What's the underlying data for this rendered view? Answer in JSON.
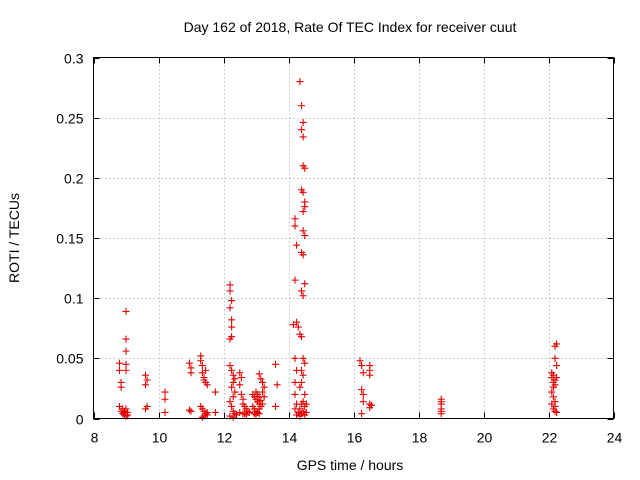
{
  "chart_data": {
    "type": "scatter",
    "title": "Day 162 of 2018, Rate Of TEC Index for receiver cuut",
    "xlabel": "GPS time / hours",
    "ylabel": "ROTI / TECUs",
    "xlim": [
      8,
      24
    ],
    "ylim": [
      0,
      0.3
    ],
    "x_ticks": [
      8,
      10,
      12,
      14,
      16,
      18,
      20,
      22,
      24
    ],
    "x_tick_labels": [
      "8",
      "10",
      "12",
      "14",
      "16",
      "18",
      "20",
      "22",
      "24"
    ],
    "y_ticks": [
      0,
      0.05,
      0.1,
      0.15,
      0.2,
      0.25,
      0.3
    ],
    "y_tick_labels": [
      "0",
      "0.05",
      "0.1",
      "0.15",
      "0.2",
      "0.25",
      "0.3"
    ],
    "grid": true,
    "marker": "plus",
    "color": "#e00000",
    "series": [
      {
        "name": "ROTI",
        "points": [
          [
            8.8,
            0.046
          ],
          [
            8.8,
            0.04
          ],
          [
            8.85,
            0.03
          ],
          [
            8.85,
            0.026
          ],
          [
            8.8,
            0.01
          ],
          [
            8.85,
            0.006
          ],
          [
            8.9,
            0.004
          ],
          [
            8.95,
            0.003
          ],
          [
            8.9,
            0.008
          ],
          [
            8.95,
            0.005
          ],
          [
            9.0,
            0.089
          ],
          [
            9.0,
            0.066
          ],
          [
            9.0,
            0.056
          ],
          [
            9.0,
            0.045
          ],
          [
            9.0,
            0.04
          ],
          [
            9.0,
            0.008
          ],
          [
            9.05,
            0.005
          ],
          [
            9.05,
            0.003
          ],
          [
            9.0,
            0.002
          ],
          [
            8.95,
            0.006
          ],
          [
            9.6,
            0.036
          ],
          [
            9.65,
            0.032
          ],
          [
            9.6,
            0.028
          ],
          [
            9.65,
            0.01
          ],
          [
            9.6,
            0.008
          ],
          [
            10.2,
            0.022
          ],
          [
            10.2,
            0.016
          ],
          [
            10.2,
            0.005
          ],
          [
            10.95,
            0.046
          ],
          [
            11.0,
            0.042
          ],
          [
            11.0,
            0.038
          ],
          [
            10.95,
            0.007
          ],
          [
            11.0,
            0.006
          ],
          [
            11.3,
            0.052
          ],
          [
            11.3,
            0.048
          ],
          [
            11.35,
            0.044
          ],
          [
            11.35,
            0.038
          ],
          [
            11.4,
            0.034
          ],
          [
            11.4,
            0.032
          ],
          [
            11.45,
            0.04
          ],
          [
            11.45,
            0.03
          ],
          [
            11.5,
            0.028
          ],
          [
            11.3,
            0.01
          ],
          [
            11.35,
            0.008
          ],
          [
            11.4,
            0.006
          ],
          [
            11.45,
            0.004
          ],
          [
            11.5,
            0.003
          ],
          [
            11.4,
            0.002
          ],
          [
            11.5,
            0.005
          ],
          [
            11.35,
            0.001
          ],
          [
            11.75,
            0.022
          ],
          [
            11.75,
            0.005
          ],
          [
            12.2,
            0.111
          ],
          [
            12.2,
            0.106
          ],
          [
            12.25,
            0.098
          ],
          [
            12.2,
            0.092
          ],
          [
            12.25,
            0.082
          ],
          [
            12.25,
            0.076
          ],
          [
            12.25,
            0.068
          ],
          [
            12.2,
            0.066
          ],
          [
            12.2,
            0.044
          ],
          [
            12.25,
            0.04
          ],
          [
            12.3,
            0.036
          ],
          [
            12.35,
            0.033
          ],
          [
            12.3,
            0.03
          ],
          [
            12.25,
            0.026
          ],
          [
            12.35,
            0.022
          ],
          [
            12.3,
            0.018
          ],
          [
            12.2,
            0.014
          ],
          [
            12.25,
            0.01
          ],
          [
            12.3,
            0.006
          ],
          [
            12.35,
            0.004
          ],
          [
            12.4,
            0.003
          ],
          [
            12.2,
            0.002
          ],
          [
            12.3,
            0.001
          ],
          [
            12.5,
            0.038
          ],
          [
            12.55,
            0.034
          ],
          [
            12.5,
            0.028
          ],
          [
            12.55,
            0.02
          ],
          [
            12.6,
            0.016
          ],
          [
            12.6,
            0.012
          ],
          [
            12.65,
            0.01
          ],
          [
            12.7,
            0.008
          ],
          [
            12.75,
            0.006
          ],
          [
            12.8,
            0.005
          ],
          [
            12.6,
            0.004
          ],
          [
            12.7,
            0.003
          ],
          [
            12.5,
            0.005
          ],
          [
            12.65,
            0.004
          ],
          [
            12.9,
            0.02
          ],
          [
            12.95,
            0.018
          ],
          [
            13.0,
            0.016
          ],
          [
            13.05,
            0.014
          ],
          [
            13.1,
            0.012
          ],
          [
            12.9,
            0.01
          ],
          [
            12.95,
            0.008
          ],
          [
            13.0,
            0.006
          ],
          [
            13.05,
            0.005
          ],
          [
            13.1,
            0.004
          ],
          [
            13.0,
            0.022
          ],
          [
            13.05,
            0.02
          ],
          [
            13.1,
            0.018
          ],
          [
            13.15,
            0.015
          ],
          [
            13.2,
            0.012
          ],
          [
            13.15,
            0.01
          ],
          [
            13.1,
            0.008
          ],
          [
            12.95,
            0.004
          ],
          [
            13.0,
            0.003
          ],
          [
            13.1,
            0.037
          ],
          [
            13.15,
            0.033
          ],
          [
            13.2,
            0.03
          ],
          [
            13.25,
            0.026
          ],
          [
            13.2,
            0.022
          ],
          [
            13.25,
            0.018
          ],
          [
            13.6,
            0.045
          ],
          [
            13.65,
            0.028
          ],
          [
            13.6,
            0.01
          ],
          [
            14.15,
            0.078
          ],
          [
            14.2,
            0.166
          ],
          [
            14.2,
            0.16
          ],
          [
            14.25,
            0.144
          ],
          [
            14.2,
            0.115
          ],
          [
            14.25,
            0.08
          ],
          [
            14.2,
            0.05
          ],
          [
            14.25,
            0.04
          ],
          [
            14.2,
            0.03
          ],
          [
            14.2,
            0.02
          ],
          [
            14.25,
            0.012
          ],
          [
            14.2,
            0.008
          ],
          [
            14.3,
            0.005
          ],
          [
            14.25,
            0.003
          ],
          [
            14.35,
            0.28
          ],
          [
            14.4,
            0.26
          ],
          [
            14.45,
            0.246
          ],
          [
            14.4,
            0.24
          ],
          [
            14.45,
            0.234
          ],
          [
            14.45,
            0.21
          ],
          [
            14.5,
            0.208
          ],
          [
            14.4,
            0.19
          ],
          [
            14.45,
            0.188
          ],
          [
            14.5,
            0.18
          ],
          [
            14.5,
            0.176
          ],
          [
            14.45,
            0.172
          ],
          [
            14.45,
            0.156
          ],
          [
            14.5,
            0.152
          ],
          [
            14.4,
            0.138
          ],
          [
            14.45,
            0.136
          ],
          [
            14.5,
            0.112
          ],
          [
            14.4,
            0.106
          ],
          [
            14.45,
            0.102
          ],
          [
            14.35,
            0.07
          ],
          [
            14.4,
            0.068
          ],
          [
            14.3,
            0.076
          ],
          [
            14.45,
            0.05
          ],
          [
            14.5,
            0.046
          ],
          [
            14.4,
            0.04
          ],
          [
            14.45,
            0.036
          ],
          [
            14.4,
            0.03
          ],
          [
            14.35,
            0.026
          ],
          [
            14.5,
            0.02
          ],
          [
            14.45,
            0.014
          ],
          [
            14.4,
            0.012
          ],
          [
            14.5,
            0.01
          ],
          [
            14.35,
            0.008
          ],
          [
            14.45,
            0.006
          ],
          [
            14.4,
            0.004
          ],
          [
            14.5,
            0.003
          ],
          [
            14.35,
            0.002
          ],
          [
            14.55,
            0.012
          ],
          [
            14.55,
            0.005
          ],
          [
            16.2,
            0.048
          ],
          [
            16.25,
            0.044
          ],
          [
            16.3,
            0.038
          ],
          [
            16.25,
            0.024
          ],
          [
            16.3,
            0.02
          ],
          [
            16.3,
            0.014
          ],
          [
            16.25,
            0.004
          ],
          [
            16.5,
            0.044
          ],
          [
            16.5,
            0.04
          ],
          [
            16.5,
            0.036
          ],
          [
            16.5,
            0.012
          ],
          [
            16.55,
            0.011
          ],
          [
            16.5,
            0.009
          ],
          [
            18.7,
            0.016
          ],
          [
            18.7,
            0.014
          ],
          [
            18.7,
            0.012
          ],
          [
            18.7,
            0.008
          ],
          [
            18.7,
            0.006
          ],
          [
            18.7,
            0.004
          ],
          [
            22.1,
            0.038
          ],
          [
            22.15,
            0.036
          ],
          [
            22.1,
            0.034
          ],
          [
            22.2,
            0.032
          ],
          [
            22.15,
            0.03
          ],
          [
            22.2,
            0.028
          ],
          [
            22.15,
            0.026
          ],
          [
            22.1,
            0.022
          ],
          [
            22.15,
            0.018
          ],
          [
            22.2,
            0.014
          ],
          [
            22.1,
            0.012
          ],
          [
            22.2,
            0.01
          ],
          [
            22.15,
            0.008
          ],
          [
            22.2,
            0.006
          ],
          [
            22.25,
            0.005
          ],
          [
            22.25,
            0.062
          ],
          [
            22.2,
            0.06
          ],
          [
            22.2,
            0.05
          ],
          [
            22.25,
            0.044
          ],
          [
            22.25,
            0.034
          ]
        ]
      }
    ]
  }
}
